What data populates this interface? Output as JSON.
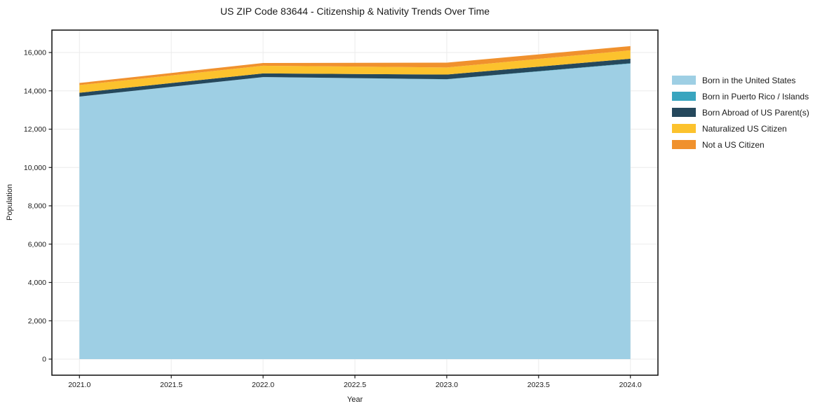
{
  "title": "US ZIP Code 83644 - Citizenship & Nativity Trends Over Time",
  "chart_data": {
    "type": "area",
    "stacked": true,
    "title": "US ZIP Code 83644 - Citizenship & Nativity Trends Over Time",
    "xlabel": "Year",
    "ylabel": "Population",
    "x": [
      2021,
      2022,
      2023,
      2024
    ],
    "series": [
      {
        "name": "Born in the United States",
        "color": "#9ecfe4",
        "values": [
          13700,
          14720,
          14600,
          15420
        ]
      },
      {
        "name": "Born in Puerto Rico / Islands",
        "color": "#39a5bf",
        "values": [
          0,
          0,
          10,
          20
        ]
      },
      {
        "name": "Born Abroad of US Parent(s)",
        "color": "#25485c",
        "values": [
          200,
          190,
          240,
          235
        ]
      },
      {
        "name": "Naturalized US Citizen",
        "color": "#fcc22d",
        "values": [
          400,
          400,
          370,
          440
        ]
      },
      {
        "name": "Not a US Citizen",
        "color": "#f0912d",
        "values": [
          110,
          145,
          250,
          220
        ]
      }
    ],
    "xlim": [
      2020.85,
      2024.15
    ],
    "ylim": [
      -840,
      17170
    ],
    "xticks": [
      "2021.0",
      "2021.5",
      "2022.0",
      "2022.5",
      "2023.0",
      "2023.5",
      "2024.0"
    ],
    "xtick_values": [
      2021,
      2021.5,
      2022,
      2022.5,
      2023,
      2023.5,
      2024
    ],
    "yticks": [
      "0",
      "2,000",
      "4,000",
      "6,000",
      "8,000",
      "10,000",
      "12,000",
      "14,000",
      "16,000"
    ],
    "ytick_values": [
      0,
      2000,
      4000,
      6000,
      8000,
      10000,
      12000,
      14000,
      16000
    ],
    "grid": true,
    "legend_position": "right",
    "colors": {
      "grid": "#ebebeb",
      "spine": "#1a1a1a",
      "text": "#1a1a1a",
      "background": "#ffffff"
    }
  }
}
